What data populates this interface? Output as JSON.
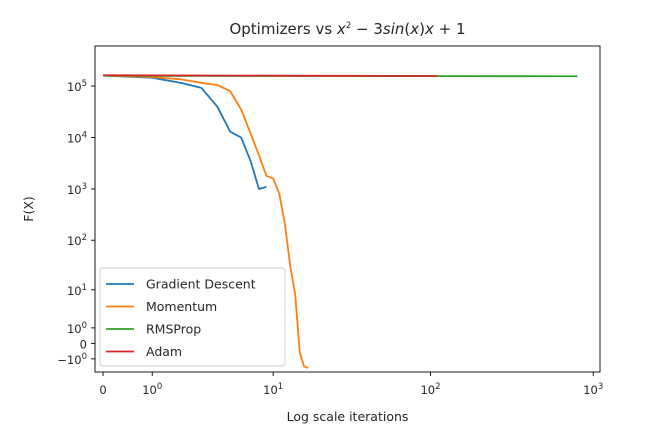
{
  "chart_data": {
    "type": "line",
    "title_prefix": "Optimizers vs ",
    "title_math": [
      "x",
      "2",
      " − 3",
      "sin",
      "(",
      "x",
      ")",
      "x",
      " + 1"
    ],
    "xlabel": "Log scale iterations",
    "ylabel": "F(X)",
    "xscale": "symlog",
    "yscale": "symlog",
    "xlim": [
      -0.12,
      1100
    ],
    "ylim": [
      -2.6,
      600000
    ],
    "x_ticks": [
      {
        "value": 0,
        "base": "0",
        "exp": ""
      },
      {
        "value": 1,
        "base": "10",
        "exp": "0"
      },
      {
        "value": 10,
        "base": "10",
        "exp": "1"
      },
      {
        "value": 100,
        "base": "10",
        "exp": "2"
      },
      {
        "value": 1000,
        "base": "10",
        "exp": "3"
      }
    ],
    "y_ticks": [
      {
        "value": -1,
        "base": "−10",
        "exp": "0"
      },
      {
        "value": 0,
        "base": "0",
        "exp": ""
      },
      {
        "value": 1,
        "base": "10",
        "exp": "0"
      },
      {
        "value": 10,
        "base": "10",
        "exp": "1"
      },
      {
        "value": 100,
        "base": "10",
        "exp": "2"
      },
      {
        "value": 1000,
        "base": "10",
        "exp": "3"
      },
      {
        "value": 10000,
        "base": "10",
        "exp": "4"
      },
      {
        "value": 100000,
        "base": "10",
        "exp": "5"
      }
    ],
    "legend_position": "lower-left",
    "series": [
      {
        "name": "Gradient Descent",
        "color": "#1f77b4",
        "x": [
          0,
          1,
          2,
          3,
          4,
          5,
          6,
          7,
          8,
          9
        ],
        "y": [
          160000,
          145000,
          115000,
          92000,
          40000,
          13000,
          10000,
          3500,
          1000,
          1100
        ]
      },
      {
        "name": "Momentum",
        "color": "#ff7f0e",
        "x": [
          0,
          1,
          2,
          3,
          4,
          5,
          6,
          7,
          8,
          9,
          10,
          11,
          12,
          13,
          14,
          15,
          16,
          17
        ],
        "y": [
          160000,
          150000,
          135000,
          115000,
          105000,
          80000,
          35000,
          12000,
          4500,
          1800,
          1600,
          800,
          200,
          30,
          8,
          -0.5,
          -1.8,
          -2.0
        ]
      },
      {
        "name": "RMSProp",
        "color": "#2ca02c",
        "x": [
          0,
          1,
          10,
          100,
          800
        ],
        "y": [
          160000,
          158000,
          157000,
          156000,
          155000
        ]
      },
      {
        "name": "Adam",
        "color": "#d62728",
        "x": [
          0,
          1,
          10,
          110
        ],
        "y": [
          162000,
          161000,
          159000,
          157000
        ]
      }
    ]
  }
}
